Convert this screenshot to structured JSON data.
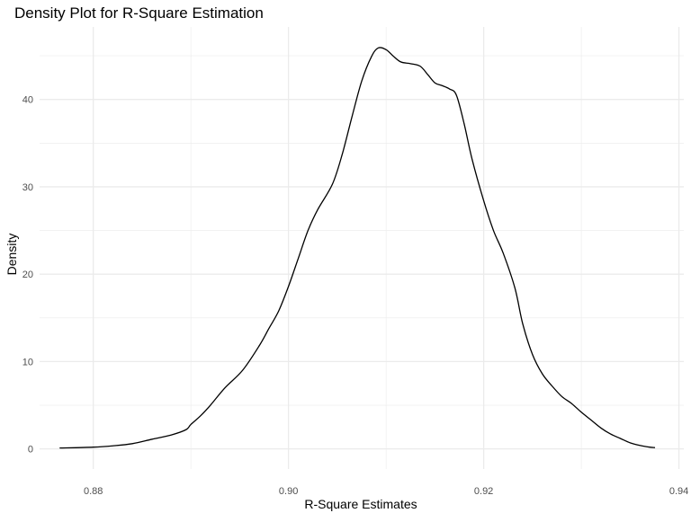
{
  "chart_data": {
    "type": "line",
    "title": "Density Plot for R-Square Estimation",
    "xlabel": "R-Square Estimates",
    "ylabel": "Density",
    "xlim": [
      0.8745,
      0.9405
    ],
    "ylim": [
      -2.3,
      48.3
    ],
    "x_ticks": [
      0.88,
      0.9,
      0.92,
      0.94
    ],
    "x_tick_labels": [
      "0.88",
      "0.90",
      "0.92",
      "0.94"
    ],
    "y_ticks": [
      0,
      10,
      20,
      30,
      40
    ],
    "y_tick_labels": [
      "0",
      "10",
      "20",
      "30",
      "40"
    ],
    "x_minor_ticks": [
      0.87,
      0.89,
      0.91,
      0.93
    ],
    "y_minor_ticks": [
      5,
      15,
      25,
      35,
      45
    ],
    "grid": true,
    "legend": "none",
    "line_color": "#000000",
    "grid_color": "#ebebeb",
    "series": [
      {
        "x": [
          0.8766,
          0.88,
          0.882,
          0.884,
          0.886,
          0.888,
          0.8895,
          0.89,
          0.891,
          0.892,
          0.8935,
          0.8953,
          0.897,
          0.898,
          0.899,
          0.9,
          0.901,
          0.902,
          0.903,
          0.9045,
          0.9055,
          0.9065,
          0.9075,
          0.9085,
          0.9092,
          0.91,
          0.9107,
          0.9115,
          0.9125,
          0.9135,
          0.9143,
          0.915,
          0.9157,
          0.9165,
          0.9172,
          0.918,
          0.9188,
          0.92,
          0.921,
          0.922,
          0.9232,
          0.924,
          0.925,
          0.926,
          0.927,
          0.928,
          0.929,
          0.93,
          0.931,
          0.932,
          0.933,
          0.934,
          0.935,
          0.936,
          0.937,
          0.9375
        ],
        "y": [
          0.1,
          0.2,
          0.35,
          0.6,
          1.1,
          1.6,
          2.2,
          2.8,
          3.8,
          5.0,
          7.0,
          9.0,
          11.8,
          13.8,
          15.8,
          18.6,
          21.8,
          25.0,
          27.4,
          30.3,
          33.7,
          38.0,
          42.1,
          44.9,
          45.9,
          45.7,
          45.0,
          44.3,
          44.1,
          43.8,
          42.8,
          41.9,
          41.6,
          41.2,
          40.5,
          37.2,
          33.2,
          28.4,
          25.0,
          22.4,
          18.4,
          14.3,
          10.8,
          8.6,
          7.2,
          6.0,
          5.2,
          4.2,
          3.3,
          2.4,
          1.7,
          1.2,
          0.7,
          0.4,
          0.2,
          0.15
        ]
      }
    ]
  }
}
